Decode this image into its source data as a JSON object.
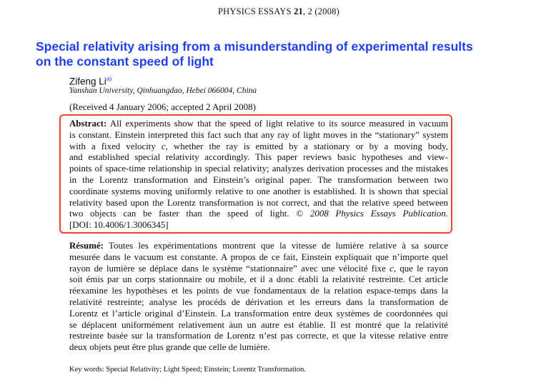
{
  "header": {
    "journal": "PHYSICS ESSAYS ",
    "volume": "21",
    "issue": ", 2 (2008)"
  },
  "title": {
    "line1": "Special relativity arising from a misunderstanding of experimental results",
    "line2": "on the constant speed of light"
  },
  "author": {
    "name": "Zifeng Li",
    "footnote": "a)",
    "affiliation": "Yanshan University, Qinhuangdao, Hebei 066004, China"
  },
  "received": "(Received 4 January 2006; accepted 2 April 2008)",
  "highlight_color": "#f0452a",
  "abstract": {
    "label": "Abstract:",
    "lines": [
      " All experiments show that the speed of light relative to its source measured in vacuum",
      "is constant. Einstein interpreted this fact such that any ray of light moves in the “stationary” system",
      "with a fixed velocity ",
      "c",
      ", whether the ray is emitted by a stationary or by a moving body,",
      "and established special relativity accordingly. This paper reviews basic hypotheses and view-",
      "points of space-time relationship in special relativity; analyzes derivation processes and the mistakes",
      "in the Lorentz transformation and Einstein’s original paper. The transformation between two",
      "coordinate systems moving uniformly relative to one another is established. It is shown that special",
      "relativity based upon the Lorentz transformation is not correct, and that the relative speed between",
      "two objects can be faster than the speed of light. © ",
      "2008 Physics Essays Publication.",
      "[DOI: 10.4006/1.3006345]"
    ]
  },
  "resume": {
    "label": "Résumé:",
    "lines": [
      " Toutes les expérimentations montrent que la vitesse de lumière relative à sa source",
      "mesurée dans le vacuum est constante. A propos de ce fait, Einstein expliquait que n’importe quel",
      "rayon de lumière se déplace dans le système “stationnaire” avec une vélocité fixe ",
      "c",
      ", que le rayon",
      "soit émis par un corps stationnaire ou mobile, et il a donc établi la relativité restreinte. Cet article",
      "réexamine les hypothèses et les points de vue fondamentaux de la relation espace-temps dans la",
      "relativité restreinte; analyse les procéds de dérivation et les erreurs dans la transformation de",
      "Lorentz et l’article original d’Einstein. La transformation entre deux systèmes de coordonnées qui",
      "se déplacent uniformément relativement àun un autre est établie. Il est montré que la relativité",
      "restreinte basée sur la transformation de Lorentz n’est pas correcte, et que la vitesse relative entre",
      "deux objets peut être plus grande que celle de lumière."
    ]
  },
  "keywords": "Key words:  Special Relativity; Light Speed; Einstein; Lorentz Transformation."
}
